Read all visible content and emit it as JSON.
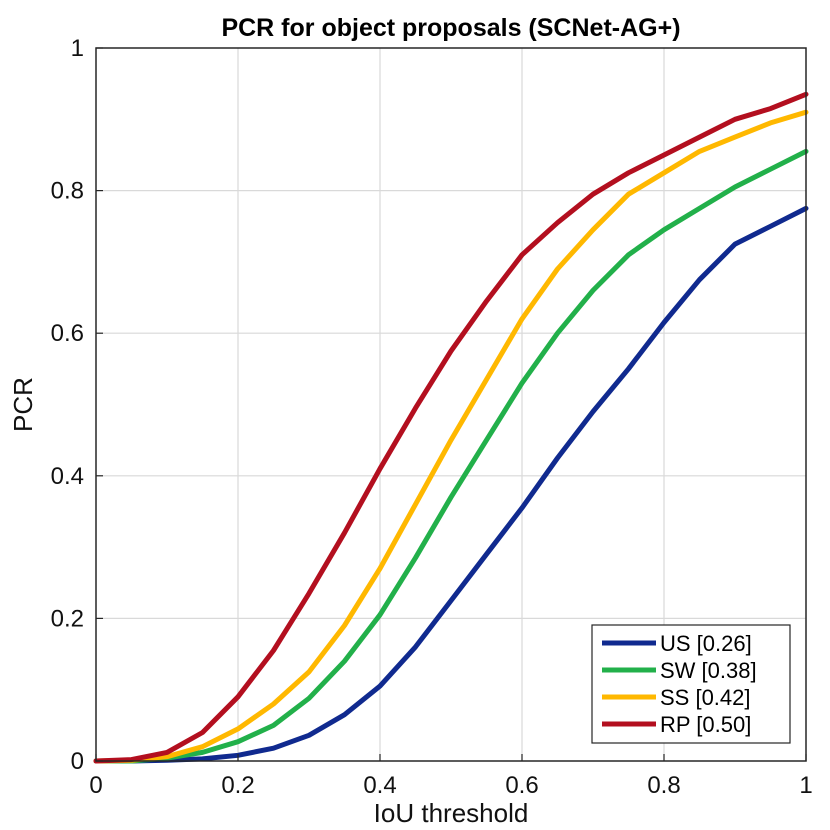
{
  "chart_data": {
    "type": "line",
    "title": "PCR for object proposals (SCNet-AG+)",
    "xlabel": "IoU threshold",
    "ylabel": "PCR",
    "xlim": [
      0,
      1
    ],
    "ylim": [
      0,
      1
    ],
    "xticks": [
      "0",
      "0.2",
      "0.4",
      "0.6",
      "0.8",
      "1"
    ],
    "yticks": [
      "0",
      "0.2",
      "0.4",
      "0.6",
      "0.8",
      "1"
    ],
    "grid": true,
    "legend_position": "bottom-right",
    "x": [
      0,
      0.05,
      0.1,
      0.15,
      0.2,
      0.25,
      0.3,
      0.35,
      0.4,
      0.45,
      0.5,
      0.55,
      0.6,
      0.65,
      0.7,
      0.75,
      0.8,
      0.85,
      0.9,
      0.95,
      1.0
    ],
    "series": [
      {
        "name": "US [0.26]",
        "color": "#102a8f",
        "values": [
          0,
          0,
          0.001,
          0.003,
          0.008,
          0.018,
          0.036,
          0.065,
          0.105,
          0.16,
          0.225,
          0.29,
          0.355,
          0.425,
          0.49,
          0.55,
          0.615,
          0.675,
          0.725,
          0.75,
          0.775
        ]
      },
      {
        "name": "SW [0.38]",
        "color": "#22b04a",
        "values": [
          0,
          0,
          0.004,
          0.012,
          0.027,
          0.05,
          0.088,
          0.14,
          0.205,
          0.285,
          0.37,
          0.45,
          0.53,
          0.6,
          0.66,
          0.71,
          0.745,
          0.775,
          0.805,
          0.83,
          0.855
        ]
      },
      {
        "name": "SS [0.42]",
        "color": "#ffb800",
        "values": [
          0,
          0.001,
          0.006,
          0.02,
          0.045,
          0.08,
          0.125,
          0.19,
          0.27,
          0.36,
          0.45,
          0.535,
          0.62,
          0.69,
          0.745,
          0.795,
          0.825,
          0.855,
          0.875,
          0.895,
          0.91
        ]
      },
      {
        "name": "RP [0.50]",
        "color": "#b30f1f",
        "values": [
          0,
          0.002,
          0.012,
          0.04,
          0.09,
          0.155,
          0.235,
          0.32,
          0.41,
          0.495,
          0.575,
          0.645,
          0.71,
          0.755,
          0.795,
          0.825,
          0.85,
          0.875,
          0.9,
          0.915,
          0.935
        ]
      }
    ]
  }
}
